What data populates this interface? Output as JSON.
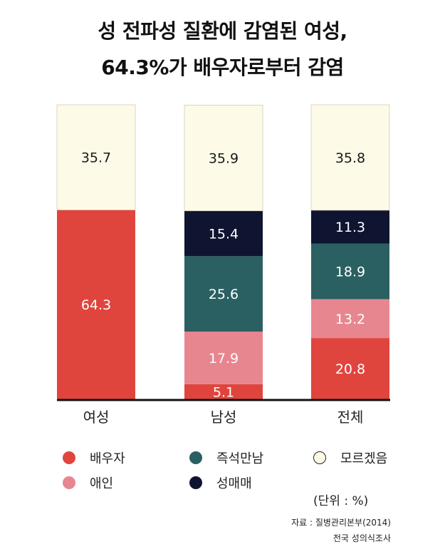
{
  "title_line1": "성 전파성 질환에 감염된 여성,",
  "title_line2": "64.3%가 배우자로부터 감염",
  "chart_data": {
    "type": "bar",
    "stacked": true,
    "percent_stacked": true,
    "categories": [
      "여성",
      "남성",
      "전체"
    ],
    "series": [
      {
        "name": "배우자",
        "color": "#e0453d",
        "label_color": "#ffffff",
        "values": [
          64.3,
          5.1,
          20.8
        ]
      },
      {
        "name": "애인",
        "color": "#e8868f",
        "label_color": "#ffffff",
        "values": [
          0,
          17.9,
          13.2
        ]
      },
      {
        "name": "즉석만남",
        "color": "#2a6062",
        "label_color": "#ffffff",
        "values": [
          0,
          25.6,
          18.9
        ]
      },
      {
        "name": "성매매",
        "color": "#0f1530",
        "label_color": "#ffffff",
        "values": [
          0,
          15.4,
          11.3
        ]
      },
      {
        "name": "모르겠음",
        "color": "#fdfbe8",
        "label_color": "#1a1a1a",
        "values": [
          35.7,
          35.9,
          35.8
        ]
      }
    ],
    "ylim": [
      0,
      100
    ],
    "unit_note": "(단위 : %)"
  },
  "source_line1": "자료 : 질병관리본부(2014)",
  "source_line2": "전국 성의식조사"
}
